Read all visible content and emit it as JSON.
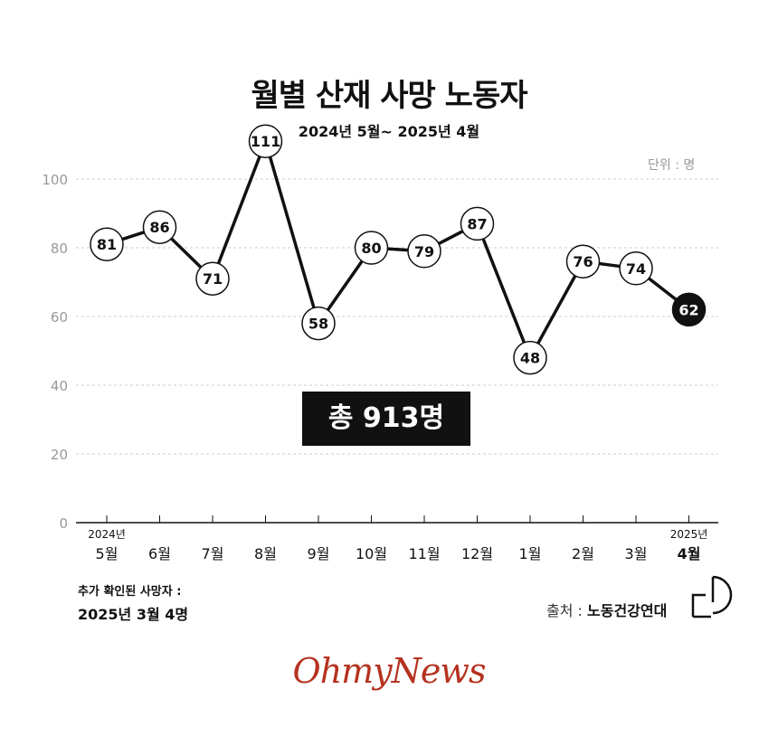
{
  "title": "월별 산재 사망 노동자",
  "subtitle": "2024년 5월~ 2025년 4월",
  "unit": "단위 : 명",
  "total": "총 913명",
  "note_label": "추가 확인된 사망자 :",
  "note_value": "2025년 3월 4명",
  "source_label": "출처 :",
  "source_value": "노동건강연대",
  "brand": "OhmyNews",
  "colors": {
    "line": "#111111",
    "highlight": "#111111",
    "grid": "#cccccc",
    "axis_text": "#999999"
  },
  "chart_data": {
    "type": "line",
    "categories": [
      "5월",
      "6월",
      "7월",
      "8월",
      "9월",
      "10월",
      "11월",
      "12월",
      "1월",
      "2월",
      "3월",
      "4월"
    ],
    "year_labels": [
      {
        "index": 0,
        "label": "2024년"
      },
      {
        "index": 11,
        "label": "2025년"
      }
    ],
    "values": [
      81,
      86,
      71,
      111,
      58,
      80,
      79,
      87,
      48,
      76,
      74,
      62
    ],
    "highlight_index": 11,
    "yticks": [
      0,
      20,
      40,
      60,
      80,
      100
    ],
    "ylim": [
      0,
      100
    ],
    "grid": true
  }
}
